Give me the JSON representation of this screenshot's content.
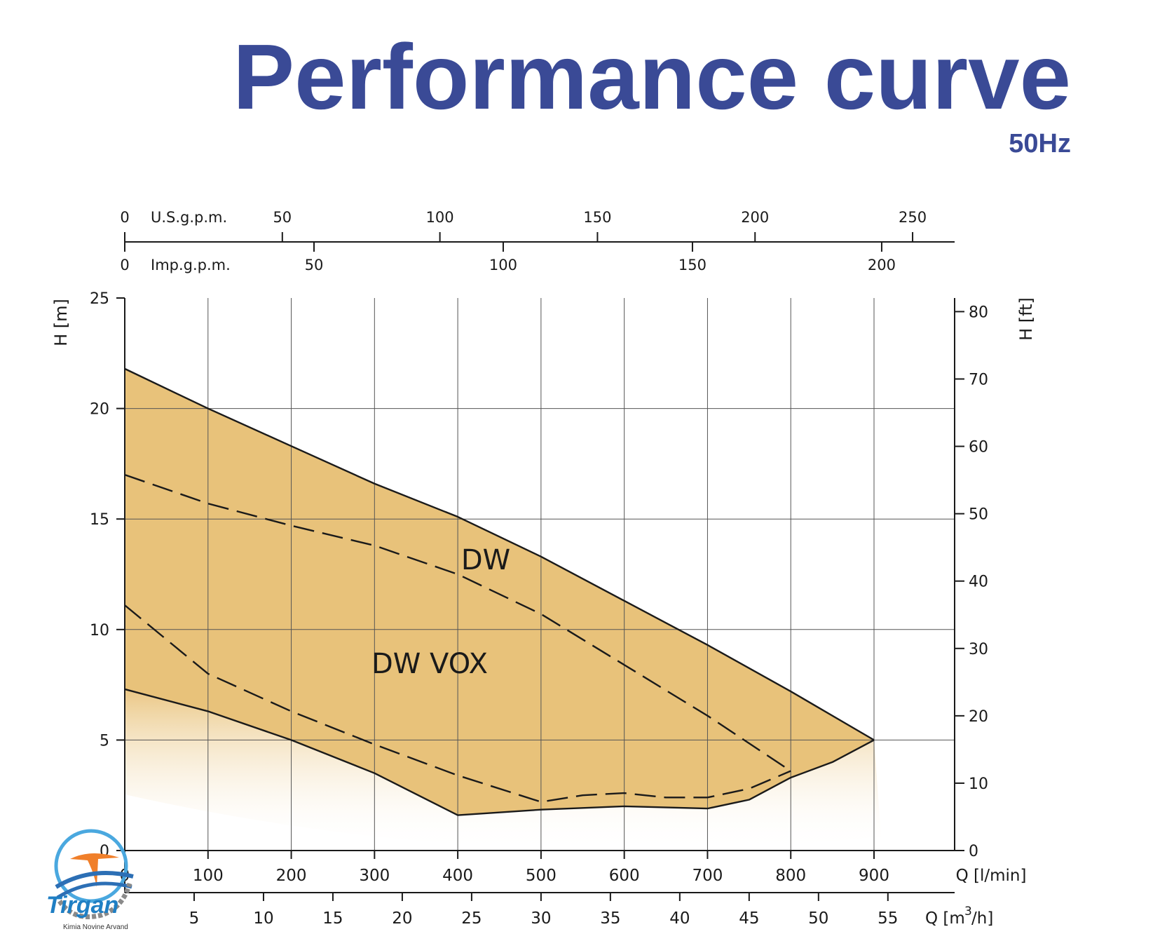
{
  "header": {
    "title": "Performance curve",
    "subtitle": "50Hz"
  },
  "colors": {
    "title": "#3a4a96",
    "fill": "#e8c27a",
    "line": "#1a1a1a",
    "grid": "#555555"
  },
  "chart_data": {
    "type": "area",
    "x_unit_label": "Q [l/min]",
    "x_range": [
      0,
      1000
    ],
    "y_range_m": [
      0,
      25
    ],
    "y_left_label": "H [m]",
    "y_right_label": "H [ft]",
    "x_ticks_lmin": [
      "0",
      "100",
      "200",
      "300",
      "400",
      "500",
      "600",
      "700",
      "800",
      "900"
    ],
    "y_ticks_m": [
      "0",
      "5",
      "10",
      "15",
      "20",
      "25"
    ],
    "y_ticks_ft": [
      "0",
      "10",
      "20",
      "30",
      "40",
      "50",
      "60",
      "70",
      "80"
    ],
    "secondary_axes": [
      {
        "label": "Q [m",
        "label_sup": "3",
        "label_end": "/h]",
        "ticks": [
          "5",
          "10",
          "15",
          "20",
          "25",
          "30",
          "35",
          "40",
          "45",
          "50",
          "55"
        ]
      },
      {
        "label": "U.S.g.p.m.",
        "zero": "0",
        "ticks": [
          "50",
          "100",
          "150",
          "200",
          "250"
        ]
      },
      {
        "label": "Imp.g.p.m.",
        "zero": "0",
        "ticks": [
          "50",
          "100",
          "150",
          "200"
        ]
      }
    ],
    "region_labels": [
      "DW",
      "DW VOX"
    ],
    "series": [
      {
        "style": "solid-upper",
        "x": [
          0,
          100,
          200,
          300,
          400,
          500,
          600,
          700,
          800,
          900
        ],
        "y": [
          21.8,
          20.0,
          18.3,
          16.6,
          15.1,
          13.3,
          11.3,
          9.3,
          7.2,
          5.0
        ]
      },
      {
        "style": "solid-lower",
        "x": [
          0,
          100,
          200,
          300,
          400,
          500,
          600,
          700,
          750,
          800,
          850,
          900
        ],
        "y": [
          7.3,
          6.3,
          5.0,
          3.5,
          1.6,
          1.85,
          2.0,
          1.9,
          2.3,
          3.3,
          4.0,
          5.0
        ]
      },
      {
        "style": "dashed",
        "x": [
          0,
          100,
          200,
          300,
          400,
          500,
          600,
          700,
          800
        ],
        "y": [
          17.0,
          15.7,
          14.7,
          13.8,
          12.5,
          10.7,
          8.4,
          6.1,
          3.6
        ]
      },
      {
        "style": "dashed",
        "x": [
          0,
          100,
          200,
          300,
          400,
          500,
          550,
          600,
          650,
          700,
          750,
          800
        ],
        "y": [
          11.1,
          8.0,
          6.3,
          4.8,
          3.4,
          2.2,
          2.5,
          2.6,
          2.4,
          2.4,
          2.8,
          3.6
        ]
      }
    ]
  },
  "logo": {
    "text": "Tirgan",
    "sub": "Kimia Novine Arvand"
  }
}
